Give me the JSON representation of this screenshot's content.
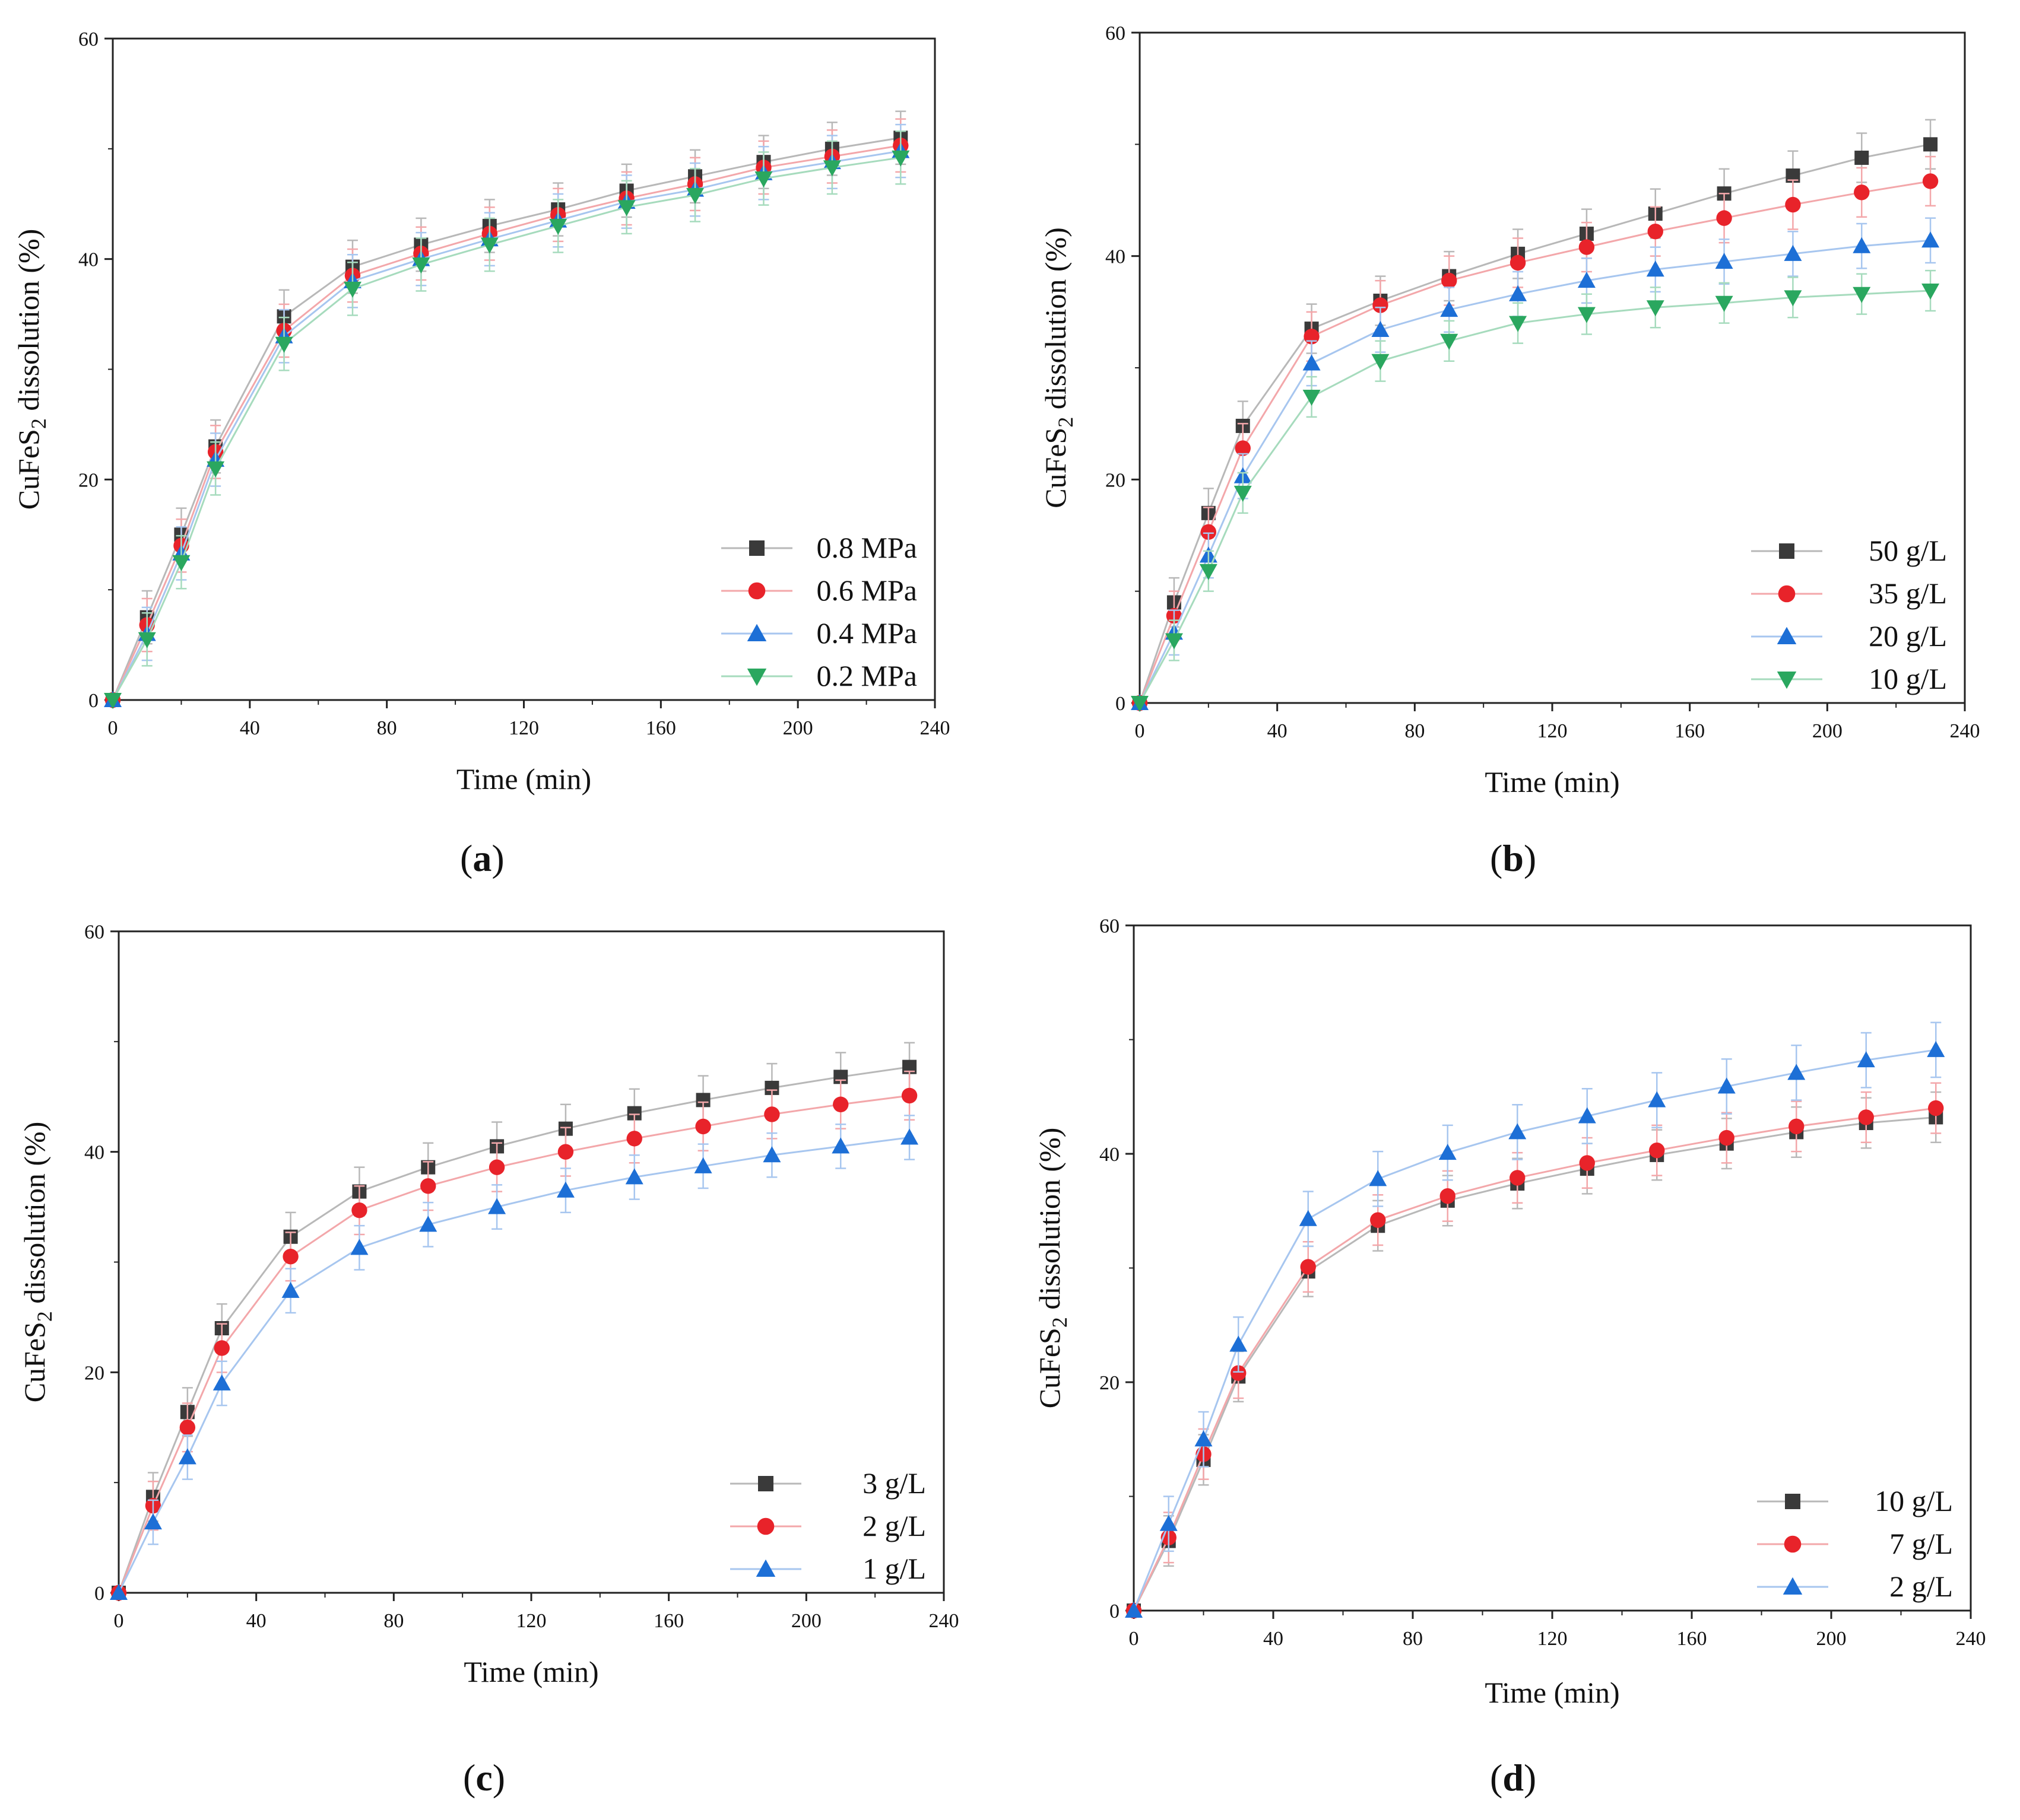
{
  "colors": {
    "black": "#3a3a3a",
    "red": "#e8232a",
    "blue": "#1d6fd6",
    "green": "#2aa75f"
  },
  "chart_data": [
    {
      "type": "line",
      "panel": "a",
      "caption_letter": "a",
      "xlabel": "Time (min)",
      "ylabel_main": "CuFeS",
      "ylabel_sub": "2",
      "ylabel_rest": " dissolution (%)",
      "xlim": [
        0,
        240
      ],
      "ylim": [
        0,
        60
      ],
      "xticks": [
        0,
        40,
        80,
        120,
        160,
        200,
        240
      ],
      "yticks": [
        0,
        20,
        40,
        60
      ],
      "legend_position": "bottom-right",
      "x": [
        0,
        10,
        20,
        30,
        50,
        70,
        90,
        110,
        130,
        150,
        170,
        190,
        210,
        230
      ],
      "series": [
        {
          "name": "0.8 MPa",
          "marker": "square",
          "color": "black",
          "error": 2.4,
          "values": [
            0,
            7.5,
            15,
            23,
            34.8,
            39.3,
            41.3,
            43,
            44.5,
            46.2,
            47.5,
            48.8,
            50,
            51
          ]
        },
        {
          "name": "0.6 MPa",
          "marker": "circle",
          "color": "red",
          "error": 2.4,
          "values": [
            0,
            6.8,
            14,
            22.5,
            33.5,
            38.5,
            40.5,
            42.3,
            44,
            45.5,
            46.8,
            48.3,
            49.3,
            50.3
          ]
        },
        {
          "name": "0.4 MPa",
          "marker": "triangle-up",
          "color": "blue",
          "error": 2.4,
          "values": [
            0,
            6,
            13.3,
            21.8,
            33,
            38,
            40,
            41.8,
            43.5,
            45.2,
            46.3,
            47.8,
            48.8,
            49.8
          ]
        },
        {
          "name": "0.2 MPa",
          "marker": "triangle-down",
          "color": "green",
          "error": 2.4,
          "values": [
            0,
            5.5,
            12.5,
            21,
            32.3,
            37.3,
            39.5,
            41.3,
            43,
            44.7,
            45.8,
            47.3,
            48.3,
            49.2
          ]
        }
      ]
    },
    {
      "type": "line",
      "panel": "b",
      "caption_letter": "b",
      "xlabel": "Time (min)",
      "ylabel_main": "CuFeS",
      "ylabel_sub": "2",
      "ylabel_rest": " dissolution (%)",
      "xlim": [
        0,
        240
      ],
      "ylim": [
        0,
        60
      ],
      "xticks": [
        0,
        40,
        80,
        120,
        160,
        200,
        240
      ],
      "yticks": [
        0,
        20,
        40,
        60
      ],
      "legend_position": "bottom-right",
      "x": [
        0,
        10,
        20,
        30,
        50,
        70,
        90,
        110,
        130,
        150,
        170,
        190,
        210,
        230
      ],
      "series": [
        {
          "name": "50 g/L",
          "marker": "square",
          "color": "black",
          "error": 2.2,
          "values": [
            0,
            9,
            17,
            24.8,
            33.5,
            36,
            38.2,
            40.2,
            42,
            43.8,
            45.6,
            47.2,
            48.8,
            50
          ]
        },
        {
          "name": "35 g/L",
          "marker": "circle",
          "color": "red",
          "error": 2.2,
          "values": [
            0,
            7.8,
            15.3,
            22.8,
            32.8,
            35.6,
            37.8,
            39.4,
            40.8,
            42.2,
            43.4,
            44.6,
            45.7,
            46.7
          ]
        },
        {
          "name": "20 g/L",
          "marker": "triangle-up",
          "color": "blue",
          "error": 2.0,
          "values": [
            0,
            6.3,
            13.2,
            20.3,
            30.4,
            33.4,
            35.2,
            36.6,
            37.8,
            38.8,
            39.5,
            40.2,
            40.9,
            41.4
          ]
        },
        {
          "name": "10 g/L",
          "marker": "triangle-down",
          "color": "green",
          "error": 1.8,
          "values": [
            0,
            5.6,
            11.8,
            18.8,
            27.4,
            30.6,
            32.4,
            34,
            34.8,
            35.4,
            35.8,
            36.3,
            36.6,
            36.9
          ]
        }
      ]
    },
    {
      "type": "line",
      "panel": "c",
      "caption_letter": "c",
      "xlabel": "Time (min)",
      "ylabel_main": "CuFeS",
      "ylabel_sub": "2",
      "ylabel_rest": " dissolution (%)",
      "xlim": [
        0,
        240
      ],
      "ylim": [
        0,
        60
      ],
      "xticks": [
        0,
        40,
        80,
        120,
        160,
        200,
        240
      ],
      "yticks": [
        0,
        20,
        40,
        60
      ],
      "legend_position": "bottom-right",
      "x": [
        0,
        10,
        20,
        30,
        50,
        70,
        90,
        110,
        130,
        150,
        170,
        190,
        210,
        230
      ],
      "series": [
        {
          "name": "3 g/L",
          "marker": "square",
          "color": "black",
          "error": 2.2,
          "values": [
            0,
            8.7,
            16.4,
            24,
            32.3,
            36.4,
            38.6,
            40.5,
            42.1,
            43.5,
            44.7,
            45.8,
            46.8,
            47.7
          ]
        },
        {
          "name": "2 g/L",
          "marker": "circle",
          "color": "red",
          "error": 2.2,
          "values": [
            0,
            7.9,
            15,
            22.2,
            30.5,
            34.7,
            36.9,
            38.6,
            40,
            41.2,
            42.3,
            43.4,
            44.3,
            45.1
          ]
        },
        {
          "name": "1 g/L",
          "marker": "triangle-up",
          "color": "blue",
          "error": 2.0,
          "values": [
            0,
            6.4,
            12.3,
            19,
            27.4,
            31.3,
            33.4,
            35,
            36.5,
            37.7,
            38.7,
            39.7,
            40.5,
            41.3
          ]
        }
      ]
    },
    {
      "type": "line",
      "panel": "d",
      "caption_letter": "d",
      "xlabel": "Time (min)",
      "ylabel_main": "CuFeS",
      "ylabel_sub": "2",
      "ylabel_rest": " dissolution (%)",
      "xlim": [
        0,
        240
      ],
      "ylim": [
        0,
        60
      ],
      "xticks": [
        0,
        40,
        80,
        120,
        160,
        200,
        240
      ],
      "yticks": [
        0,
        20,
        40,
        60
      ],
      "legend_position": "bottom-right",
      "x": [
        0,
        10,
        20,
        30,
        50,
        70,
        90,
        110,
        130,
        150,
        170,
        190,
        210,
        230
      ],
      "series": [
        {
          "name": "10 g/L",
          "marker": "square",
          "color": "black",
          "error": 2.2,
          "values": [
            0,
            6.1,
            13.2,
            20.5,
            29.7,
            33.7,
            35.9,
            37.4,
            38.7,
            39.9,
            40.9,
            41.9,
            42.7,
            43.2
          ]
        },
        {
          "name": "7  g/L",
          "marker": "circle",
          "color": "red",
          "error": 2.2,
          "values": [
            0,
            6.4,
            13.7,
            20.8,
            30.1,
            34.2,
            36.3,
            37.9,
            39.2,
            40.3,
            41.4,
            42.4,
            43.2,
            44
          ]
        },
        {
          "name": "2  g/L",
          "marker": "triangle-up",
          "color": "blue",
          "error": 2.4,
          "values": [
            0,
            7.6,
            15,
            23.3,
            34.3,
            37.8,
            40.1,
            41.9,
            43.3,
            44.7,
            45.9,
            47.1,
            48.2,
            49.1
          ]
        }
      ]
    }
  ]
}
